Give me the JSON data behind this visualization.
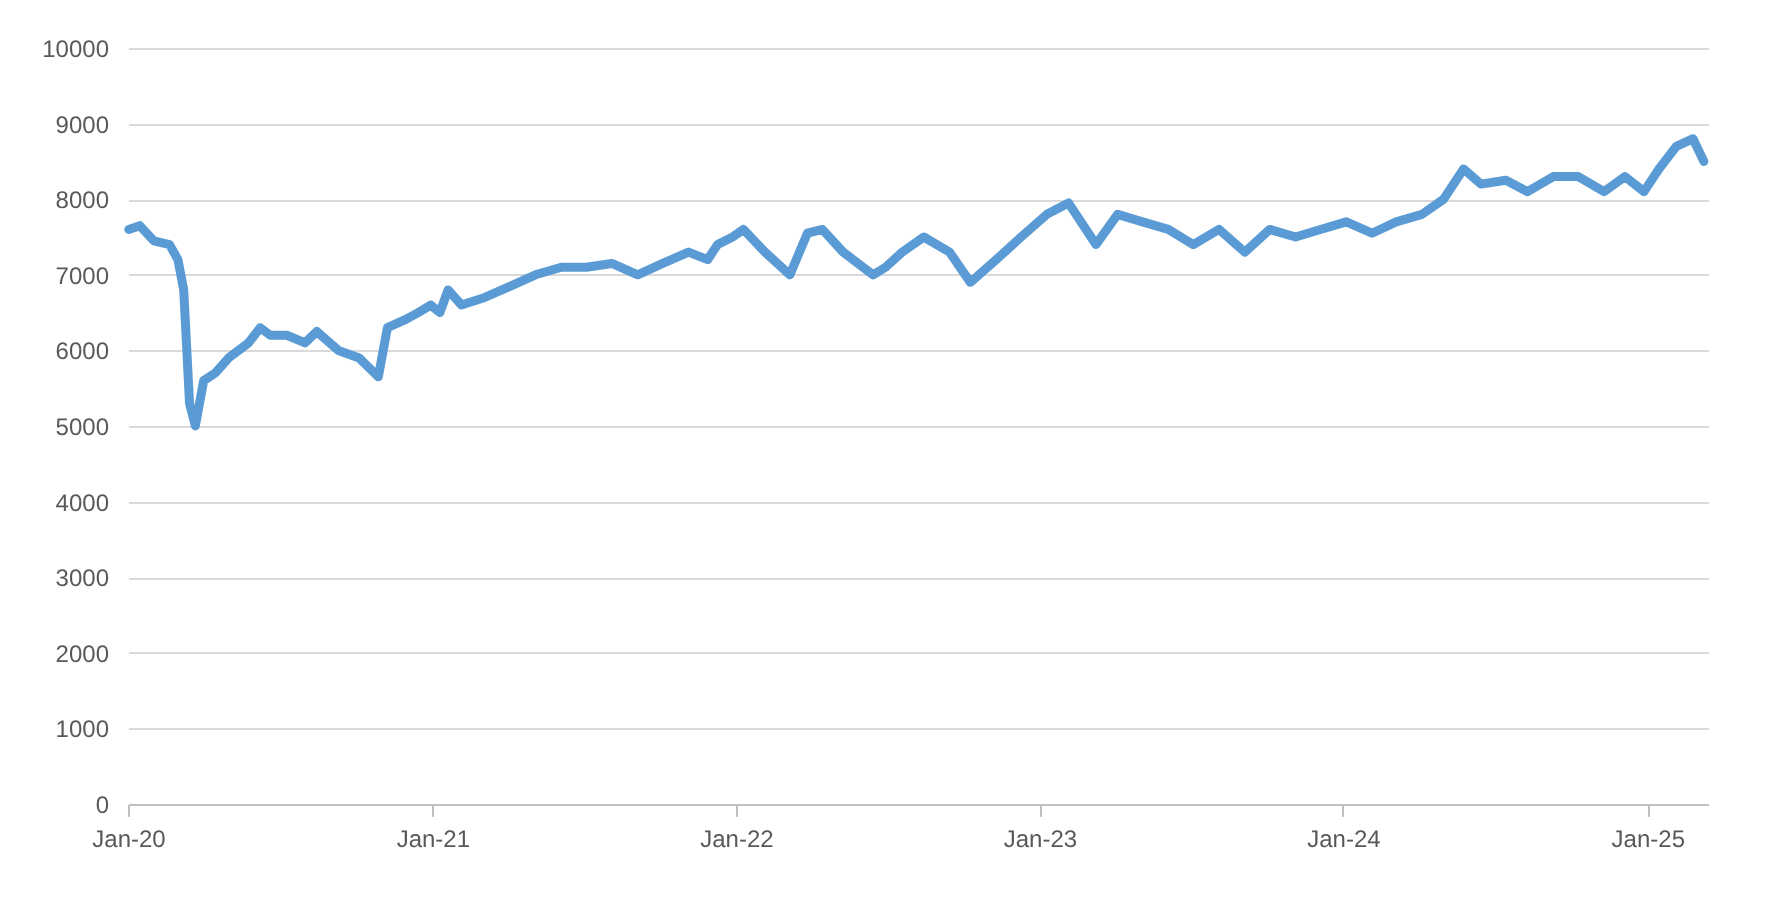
{
  "chart_data": {
    "type": "line",
    "x": [
      "2020-01-02",
      "2020-01-15",
      "2020-02-01",
      "2020-02-20",
      "2020-03-01",
      "2020-03-08",
      "2020-03-15",
      "2020-03-22",
      "2020-04-01",
      "2020-04-15",
      "2020-05-01",
      "2020-05-25",
      "2020-06-08",
      "2020-06-20",
      "2020-07-10",
      "2020-08-01",
      "2020-08-15",
      "2020-09-10",
      "2020-10-05",
      "2020-10-28",
      "2020-11-08",
      "2020-11-28",
      "2020-12-15",
      "2020-12-30",
      "2021-01-10",
      "2021-01-20",
      "2021-02-05",
      "2021-03-05",
      "2021-04-05",
      "2021-05-05",
      "2021-06-05",
      "2021-07-05",
      "2021-08-05",
      "2021-09-05",
      "2021-10-05",
      "2021-11-05",
      "2021-11-28",
      "2021-12-10",
      "2021-12-28",
      "2022-01-10",
      "2022-02-05",
      "2022-03-07",
      "2022-03-28",
      "2022-04-15",
      "2022-05-10",
      "2022-06-15",
      "2022-06-30",
      "2022-07-20",
      "2022-08-15",
      "2022-09-15",
      "2022-10-10",
      "2022-11-10",
      "2022-12-10",
      "2023-01-10",
      "2023-02-05",
      "2023-03-10",
      "2023-04-05",
      "2023-05-05",
      "2023-06-05",
      "2023-07-05",
      "2023-08-05",
      "2023-09-05",
      "2023-10-05",
      "2023-11-05",
      "2023-12-05",
      "2024-01-05",
      "2024-02-05",
      "2024-03-05",
      "2024-04-05",
      "2024-05-01",
      "2024-05-25",
      "2024-06-15",
      "2024-07-15",
      "2024-08-10",
      "2024-09-10",
      "2024-10-10",
      "2024-11-10",
      "2024-12-05",
      "2024-12-28",
      "2025-01-15",
      "2025-02-05",
      "2025-02-25",
      "2025-03-10"
    ],
    "series": [
      {
        "color": "#5b9bd5",
        "values": [
          7600,
          7650,
          7450,
          7400,
          7200,
          6800,
          5300,
          5000,
          5600,
          5700,
          5900,
          6100,
          6300,
          6200,
          6200,
          6100,
          6250,
          6000,
          5900,
          5650,
          6300,
          6400,
          6500,
          6600,
          6500,
          6800,
          6600,
          6700,
          6850,
          7000,
          7100,
          7100,
          7150,
          7000,
          7150,
          7300,
          7200,
          7400,
          7500,
          7600,
          7300,
          7000,
          7550,
          7600,
          7300,
          7000,
          7100,
          7300,
          7500,
          7300,
          6900,
          7200,
          7500,
          7800,
          7950,
          7400,
          7800,
          7700,
          7600,
          7400,
          7600,
          7300,
          7600,
          7500,
          7600,
          7700,
          7550,
          7700,
          7800,
          8000,
          8400,
          8200,
          8250,
          8100,
          8300,
          8300,
          8100,
          8300,
          8100,
          8400,
          8700,
          8800,
          8500
        ]
      }
    ],
    "xlim": [
      "2020-01-01",
      "2025-03-15"
    ],
    "xticks": [
      {
        "value": "2020-01-01",
        "label": "Jan-20"
      },
      {
        "value": "2021-01-01",
        "label": "Jan-21"
      },
      {
        "value": "2022-01-01",
        "label": "Jan-22"
      },
      {
        "value": "2023-01-01",
        "label": "Jan-23"
      },
      {
        "value": "2024-01-01",
        "label": "Jan-24"
      },
      {
        "value": "2025-01-01",
        "label": "Jan-25"
      }
    ],
    "ylim": [
      0,
      10000
    ],
    "yticks": [
      0,
      1000,
      2000,
      3000,
      4000,
      5000,
      6000,
      7000,
      8000,
      9000,
      10000
    ],
    "grid": "y",
    "legend": false,
    "line_style": "solid",
    "marker": "none"
  }
}
